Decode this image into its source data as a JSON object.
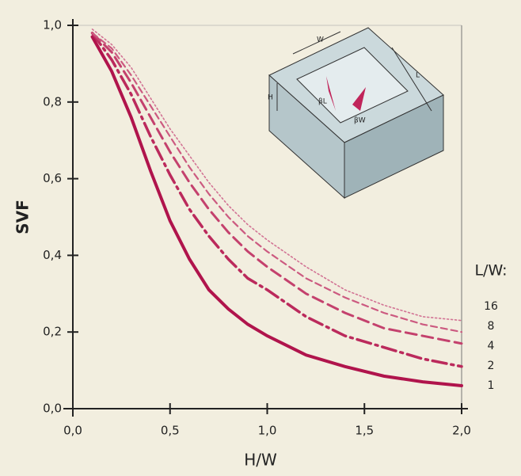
{
  "chart_data": {
    "type": "line",
    "x_label": "H/W",
    "y_label": "SVF",
    "legend_title": "L/W:",
    "x": [
      0.1,
      0.2,
      0.3,
      0.4,
      0.5,
      0.6,
      0.7,
      0.8,
      0.9,
      1.0,
      1.2,
      1.4,
      1.6,
      1.8,
      2.0
    ],
    "series": [
      {
        "name": "1",
        "color": "#b0144c",
        "style": "solid",
        "values": [
          0.97,
          0.88,
          0.76,
          0.62,
          0.49,
          0.39,
          0.31,
          0.26,
          0.22,
          0.19,
          0.14,
          0.11,
          0.085,
          0.07,
          0.06
        ]
      },
      {
        "name": "2",
        "color": "#bb2a5c",
        "style": "dashdot",
        "values": [
          0.98,
          0.91,
          0.82,
          0.71,
          0.61,
          0.52,
          0.45,
          0.39,
          0.34,
          0.31,
          0.24,
          0.19,
          0.16,
          0.13,
          0.11
        ]
      },
      {
        "name": "4",
        "color": "#c4416d",
        "style": "dashed",
        "values": [
          0.98,
          0.93,
          0.85,
          0.76,
          0.67,
          0.59,
          0.52,
          0.46,
          0.41,
          0.37,
          0.3,
          0.25,
          0.21,
          0.19,
          0.17
        ]
      },
      {
        "name": "8",
        "color": "#cc5a80",
        "style": "shortdash",
        "values": [
          0.98,
          0.94,
          0.87,
          0.79,
          0.71,
          0.63,
          0.56,
          0.5,
          0.45,
          0.41,
          0.34,
          0.29,
          0.25,
          0.22,
          0.2
        ]
      },
      {
        "name": "16",
        "color": "#d27394",
        "style": "dotted",
        "values": [
          0.99,
          0.95,
          0.89,
          0.81,
          0.73,
          0.66,
          0.59,
          0.53,
          0.48,
          0.44,
          0.37,
          0.31,
          0.27,
          0.24,
          0.23
        ]
      }
    ],
    "xlim": [
      0,
      2
    ],
    "ylim": [
      0,
      1
    ],
    "xticks": [
      {
        "value": 0,
        "label": "0,0"
      },
      {
        "value": 0.5,
        "label": "0,5"
      },
      {
        "value": 1,
        "label": "1,0"
      },
      {
        "value": 1.5,
        "label": "1,5"
      },
      {
        "value": 2,
        "label": "2,0"
      }
    ],
    "yticks": [
      {
        "value": 0,
        "label": "0,0"
      },
      {
        "value": 0.2,
        "label": "0,2"
      },
      {
        "value": 0.4,
        "label": "0,4"
      },
      {
        "value": 0.6,
        "label": "0,6"
      },
      {
        "value": 0.8,
        "label": "0,8"
      },
      {
        "value": 1,
        "label": "1,0"
      }
    ],
    "grid": false,
    "inset_labels": {
      "w": "W",
      "l": "L",
      "h": "H",
      "beta_l": "βL",
      "beta_w": "βW"
    }
  }
}
